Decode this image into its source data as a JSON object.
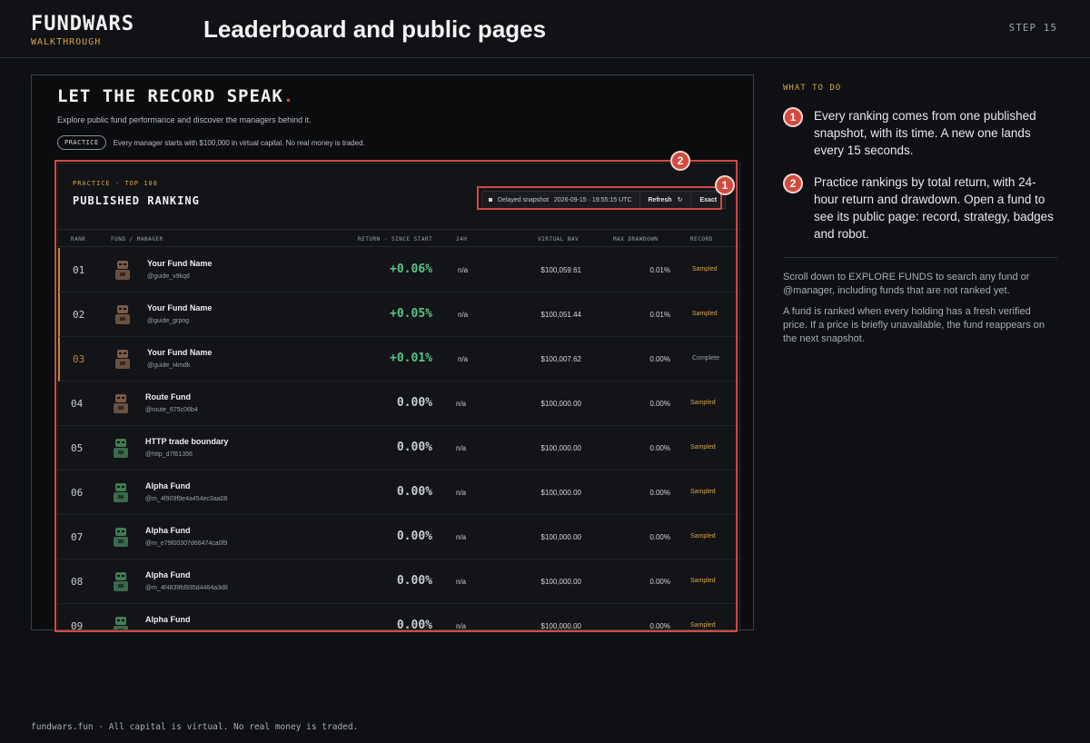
{
  "header": {
    "brand": "FUNDWARS",
    "brand_sub": "WALKTHROUGH",
    "title": "Leaderboard and public pages",
    "step": "STEP 15"
  },
  "screenshot": {
    "hero_title": "LET THE RECORD SPEAK",
    "hero_title_dot": ".",
    "hero_desc": "Explore public fund performance and discover the managers behind it.",
    "pill": "PRACTICE",
    "hero_note": "Every manager starts with $100,000 in virtual capital. No real money is traded.",
    "panel": {
      "eyebrow": "PRACTICE · TOP 100",
      "title": "PUBLISHED RANKING",
      "snapshot_label": "Delayed snapshot",
      "snapshot_time": "2026-09-15 · 19:55:15 UTC",
      "refresh_label": "Refresh",
      "refresh_icon": "↻",
      "exact_label": "Exact"
    },
    "columns": {
      "rank": "RANK",
      "fund": "FUND / MANAGER",
      "return": "RETURN · SINCE START",
      "h24": "24H",
      "nav": "VIRTUAL NAV",
      "drawdown": "MAX DRAWDOWN",
      "record": "RECORD"
    },
    "rows": [
      {
        "rank": "01",
        "name": "Your Fund Name",
        "handle": "@guide_v9kqd",
        "ret": "+0.06%",
        "h24": "n/a",
        "nav": "$100,059.61",
        "dd": "0.01%",
        "record": "Sampled"
      },
      {
        "rank": "02",
        "name": "Your Fund Name",
        "handle": "@guide_grpog",
        "ret": "+0.05%",
        "h24": "n/a",
        "nav": "$100,051.44",
        "dd": "0.01%",
        "record": "Sampled"
      },
      {
        "rank": "03",
        "name": "Your Fund Name",
        "handle": "@guide_t4mdk",
        "ret": "+0.01%",
        "h24": "n/a",
        "nav": "$100,007.62",
        "dd": "0.00%",
        "record": "Complete"
      },
      {
        "rank": "04",
        "name": "Route Fund",
        "handle": "@route_675c06b4",
        "ret": "0.00%",
        "h24": "n/a",
        "nav": "$100,000.00",
        "dd": "0.00%",
        "record": "Sampled"
      },
      {
        "rank": "05",
        "name": "HTTP trade boundary",
        "handle": "@http_d7f61356",
        "ret": "0.00%",
        "h24": "n/a",
        "nav": "$100,000.00",
        "dd": "0.00%",
        "record": "Sampled"
      },
      {
        "rank": "06",
        "name": "Alpha Fund",
        "handle": "@m_4f909f9e4a454ec3aa08",
        "ret": "0.00%",
        "h24": "n/a",
        "nav": "$100,000.00",
        "dd": "0.00%",
        "record": "Sampled"
      },
      {
        "rank": "07",
        "name": "Alpha Fund",
        "handle": "@m_e79f00307d66474ca0f9",
        "ret": "0.00%",
        "h24": "n/a",
        "nav": "$100,000.00",
        "dd": "0.00%",
        "record": "Sampled"
      },
      {
        "rank": "08",
        "name": "Alpha Fund",
        "handle": "@m_4f4839fd935d4464a3d8",
        "ret": "0.00%",
        "h24": "n/a",
        "nav": "$100,000.00",
        "dd": "0.00%",
        "record": "Sampled"
      },
      {
        "rank": "09",
        "name": "Alpha Fund",
        "handle": "",
        "ret": "0.00%",
        "h24": "n/a",
        "nav": "$100,000.00",
        "dd": "0.00%",
        "record": "Sampled"
      }
    ],
    "badges": [
      "1",
      "2"
    ]
  },
  "side": {
    "label": "WHAT TO DO",
    "steps": [
      {
        "num": "1",
        "text": "Every ranking comes from one published snapshot, with its time. A new one lands every 15 seconds."
      },
      {
        "num": "2",
        "text": "Practice rankings by total return, with 24-hour return and drawdown. Open a fund to see its public page: record, strategy, badges and robot."
      }
    ],
    "p1": "Scroll down to EXPLORE FUNDS to search any fund or @manager, including funds that are not ranked yet.",
    "p2": "A fund is ranked when every holding has a fresh verified price. If a price is briefly unavailable, the fund reappears on the next snapshot."
  },
  "footer": "fundwars.fun  ·  All capital is virtual. No real money is traded.",
  "colors": {
    "accent": "#d24a3e",
    "gold": "#d9a441",
    "positive": "#58c48a"
  }
}
